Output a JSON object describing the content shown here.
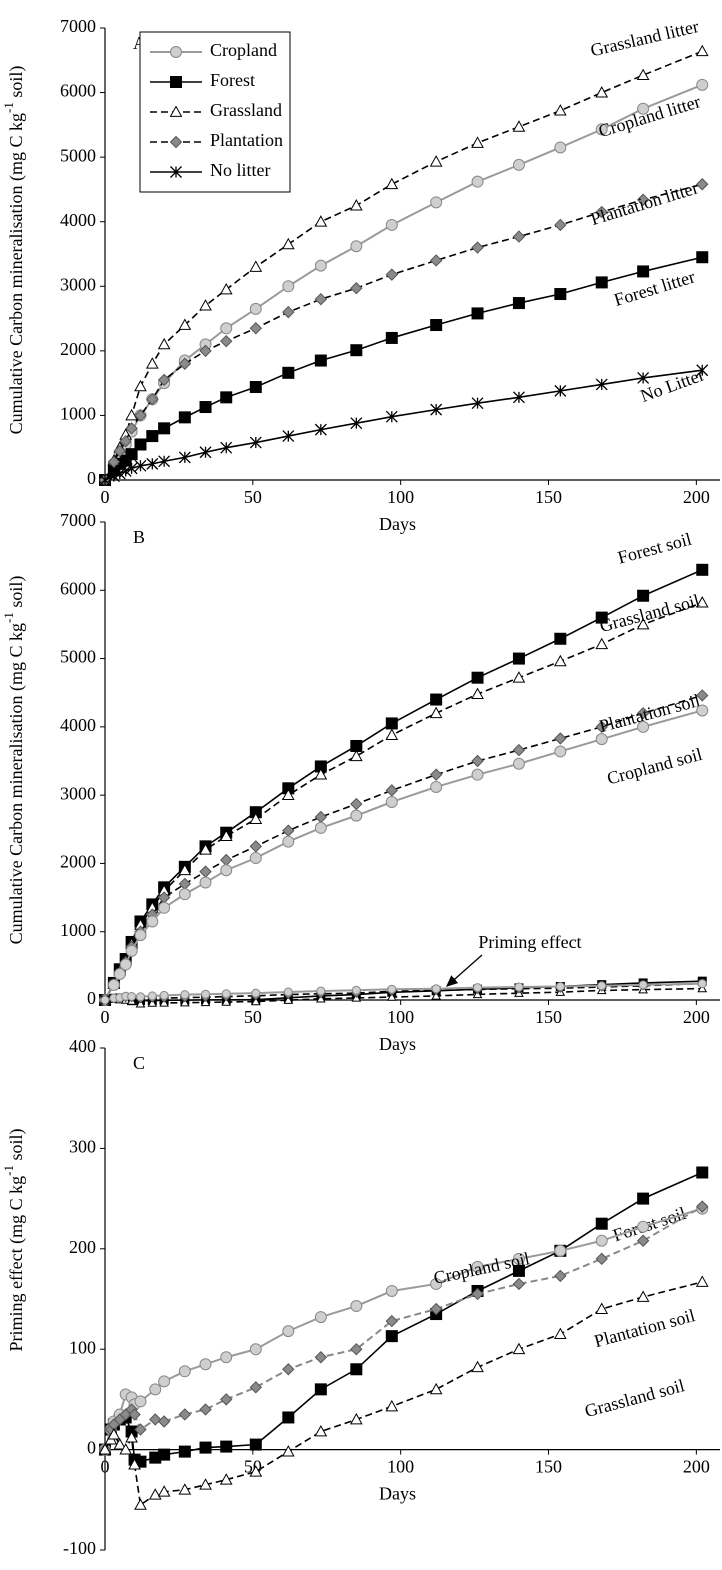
{
  "chart_data": [
    {
      "type": "line",
      "panel_label": "A",
      "y_label": [
        "Cumulative Carbon mineralisation (mg C kg",
        "-1",
        " soil)"
      ],
      "x_label": "Days",
      "x": [
        0,
        3,
        5,
        7,
        9,
        12,
        16,
        20,
        27,
        34,
        41,
        51,
        62,
        73,
        85,
        97,
        112,
        126,
        140,
        154,
        168,
        182,
        202
      ],
      "xlim": [
        0,
        208
      ],
      "xticks": [
        0,
        50,
        100,
        150,
        200
      ],
      "ylim": [
        0,
        7000
      ],
      "yticks": [
        0,
        1000,
        2000,
        3000,
        4000,
        5000,
        6000,
        7000
      ],
      "series": [
        {
          "name": "Cropland",
          "end_label": "Cropland litter",
          "color": "#9a9a9a",
          "marker": "circle",
          "marker_fill": "#cfcfcf",
          "dashed": false,
          "values": [
            0,
            250,
            400,
            550,
            750,
            1000,
            1250,
            1500,
            1850,
            2100,
            2350,
            2650,
            3000,
            3320,
            3620,
            3950,
            4300,
            4620,
            4880,
            5150,
            5430,
            5750,
            6120
          ]
        },
        {
          "name": "Forest",
          "end_label": "Forest litter",
          "color": "#000000",
          "marker": "square",
          "marker_fill": "#000000",
          "dashed": false,
          "values": [
            0,
            150,
            250,
            300,
            400,
            550,
            680,
            800,
            970,
            1130,
            1280,
            1440,
            1660,
            1850,
            2010,
            2200,
            2400,
            2580,
            2740,
            2880,
            3060,
            3230,
            3450
          ]
        },
        {
          "name": "Grassland",
          "end_label": "Grassland litter",
          "color": "#000000",
          "marker": "triangle",
          "marker_fill": "#ffffff",
          "dashed": true,
          "values": [
            0,
            300,
            500,
            700,
            1000,
            1450,
            1800,
            2100,
            2400,
            2700,
            2950,
            3300,
            3650,
            4000,
            4250,
            4580,
            4930,
            5220,
            5470,
            5720,
            6000,
            6270,
            6640
          ]
        },
        {
          "name": "Plantation",
          "end_label": "Plantation litter",
          "color": "#000000",
          "marker": "diamond",
          "marker_fill": "#8a8a8a",
          "dashed": true,
          "values": [
            0,
            280,
            450,
            600,
            800,
            1000,
            1250,
            1550,
            1800,
            2000,
            2150,
            2350,
            2600,
            2800,
            2970,
            3180,
            3400,
            3600,
            3770,
            3950,
            4150,
            4340,
            4580
          ]
        },
        {
          "name": "No litter",
          "end_label": "No Litter",
          "color": "#000000",
          "marker": "star",
          "marker_fill": "#000000",
          "dashed": false,
          "values": [
            0,
            60,
            100,
            140,
            180,
            220,
            250,
            290,
            350,
            430,
            500,
            580,
            680,
            780,
            880,
            980,
            1090,
            1190,
            1280,
            1380,
            1480,
            1580,
            1700
          ]
        }
      ]
    },
    {
      "type": "line",
      "panel_label": "B",
      "y_label": [
        "Cumulative Carbon mineralisation (mg C kg",
        "-1",
        " soil)"
      ],
      "x_label": "Days",
      "annotation": "Priming effect",
      "x": [
        0,
        3,
        5,
        7,
        9,
        12,
        16,
        20,
        27,
        34,
        41,
        51,
        62,
        73,
        85,
        97,
        112,
        126,
        140,
        154,
        168,
        182,
        202
      ],
      "xlim": [
        0,
        208
      ],
      "xticks": [
        0,
        50,
        100,
        150,
        200
      ],
      "ylim": [
        0,
        7000
      ],
      "yticks": [
        0,
        1000,
        2000,
        3000,
        4000,
        5000,
        6000,
        7000
      ],
      "series": [
        {
          "end_label": "Forest soil",
          "color": "#000000",
          "marker": "square",
          "marker_fill": "#000000",
          "dashed": false,
          "values": [
            0,
            250,
            450,
            600,
            850,
            1150,
            1400,
            1650,
            1950,
            2250,
            2450,
            2750,
            3100,
            3420,
            3720,
            4050,
            4400,
            4720,
            5000,
            5290,
            5600,
            5920,
            6300
          ]
        },
        {
          "end_label": "Grassland soil",
          "color": "#000000",
          "marker": "triangle",
          "marker_fill": "#ffffff",
          "dashed": true,
          "values": [
            0,
            240,
            430,
            580,
            820,
            1100,
            1350,
            1600,
            1900,
            2200,
            2400,
            2650,
            3000,
            3300,
            3570,
            3880,
            4200,
            4480,
            4720,
            4960,
            5210,
            5500,
            5820
          ]
        },
        {
          "end_label": "Plantation soil",
          "color": "#000000",
          "marker": "diamond",
          "marker_fill": "#8a8a8a",
          "dashed": true,
          "values": [
            0,
            230,
            400,
            550,
            780,
            1000,
            1250,
            1500,
            1700,
            1880,
            2050,
            2250,
            2480,
            2680,
            2870,
            3070,
            3300,
            3500,
            3660,
            3830,
            4000,
            4200,
            4460
          ]
        },
        {
          "end_label": "Cropland soil",
          "color": "#9a9a9a",
          "marker": "circle",
          "marker_fill": "#cfcfcf",
          "dashed": false,
          "values": [
            0,
            220,
            380,
            520,
            720,
            950,
            1150,
            1350,
            1550,
            1720,
            1900,
            2080,
            2320,
            2520,
            2700,
            2900,
            3120,
            3300,
            3460,
            3640,
            3820,
            4000,
            4240
          ]
        },
        {
          "color": "#000000",
          "marker": "square",
          "marker_fill": "#000000",
          "dashed": false,
          "marker_size": 4,
          "values": [
            0,
            25,
            30,
            20,
            -10,
            -10,
            -8,
            -5,
            -2,
            2,
            3,
            5,
            32,
            60,
            80,
            113,
            135,
            158,
            178,
            198,
            225,
            250,
            276
          ]
        },
        {
          "color": "#000000",
          "marker": "triangle",
          "marker_fill": "#ffffff",
          "dashed": true,
          "marker_size": 4,
          "values": [
            0,
            15,
            5,
            0,
            -15,
            -55,
            -45,
            -42,
            -40,
            -35,
            -30,
            -22,
            -2,
            18,
            30,
            43,
            60,
            82,
            100,
            115,
            140,
            152,
            167
          ]
        },
        {
          "color": "#000000",
          "marker": "diamond",
          "marker_fill": "#8a8a8a",
          "dashed": true,
          "marker_size": 4,
          "values": [
            0,
            25,
            30,
            35,
            35,
            20,
            30,
            28,
            35,
            40,
            50,
            62,
            80,
            92,
            100,
            128,
            140,
            155,
            165,
            173,
            190,
            208,
            242
          ]
        },
        {
          "color": "#9a9a9a",
          "marker": "circle",
          "marker_fill": "#cfcfcf",
          "dashed": false,
          "marker_size": 4,
          "values": [
            0,
            28,
            35,
            55,
            52,
            48,
            60,
            68,
            78,
            85,
            92,
            100,
            118,
            132,
            143,
            158,
            165,
            182,
            190,
            198,
            208,
            222,
            240
          ]
        }
      ]
    },
    {
      "type": "line",
      "panel_label": "C",
      "y_label": [
        "Priming effect (mg C kg",
        "-1",
        " soil)"
      ],
      "x_label": "Days",
      "x": [
        0,
        2,
        3,
        5,
        7,
        9,
        10,
        12,
        17,
        20,
        27,
        34,
        41,
        51,
        62,
        73,
        85,
        97,
        112,
        126,
        140,
        154,
        168,
        182,
        202
      ],
      "xlim": [
        0,
        208
      ],
      "xticks": [
        0,
        50,
        100,
        150,
        200
      ],
      "ylim": [
        -100,
        400
      ],
      "yticks": [
        -100,
        0,
        100,
        200,
        300,
        400
      ],
      "series": [
        {
          "end_label": "Forest soil",
          "color": "#000000",
          "marker": "square",
          "marker_fill": "#000000",
          "dashed": false,
          "values": [
            0,
            20,
            25,
            30,
            32,
            18,
            -10,
            -12,
            -8,
            -5,
            -2,
            2,
            3,
            5,
            32,
            60,
            80,
            113,
            135,
            158,
            178,
            198,
            225,
            250,
            276
          ]
        },
        {
          "end_label": "Cropland soil",
          "color": "#9a9a9a",
          "marker": "circle",
          "marker_fill": "#cfcfcf",
          "dashed": false,
          "values": [
            0,
            20,
            28,
            35,
            55,
            52,
            45,
            48,
            60,
            68,
            78,
            85,
            92,
            100,
            118,
            132,
            143,
            158,
            165,
            182,
            190,
            198,
            208,
            222,
            240
          ]
        },
        {
          "end_label": "Plantation soil",
          "color": "#888888",
          "marker": "diamond",
          "marker_fill": "#8a8a8a",
          "dashed": true,
          "values": [
            0,
            20,
            25,
            30,
            35,
            40,
            35,
            20,
            30,
            28,
            35,
            40,
            50,
            62,
            80,
            92,
            100,
            128,
            140,
            155,
            165,
            173,
            190,
            208,
            242
          ]
        },
        {
          "end_label": "Grassland soil",
          "color": "#000000",
          "marker": "triangle",
          "marker_fill": "#ffffff",
          "dashed": true,
          "values": [
            0,
            10,
            15,
            5,
            0,
            12,
            -15,
            -55,
            -45,
            -42,
            -40,
            -35,
            -30,
            -22,
            -2,
            18,
            30,
            43,
            60,
            82,
            100,
            115,
            140,
            152,
            167
          ]
        }
      ]
    }
  ]
}
